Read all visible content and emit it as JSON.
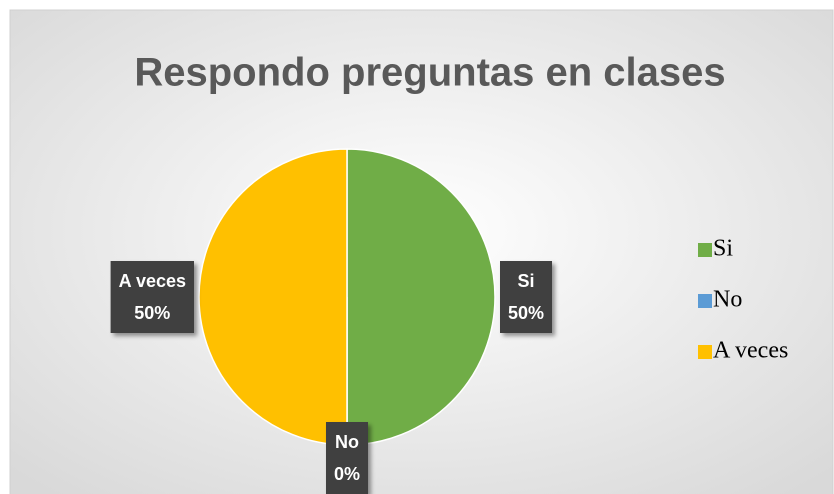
{
  "chart_data": {
    "type": "pie",
    "title": "Respondo preguntas en clases",
    "categories": [
      "Si",
      "No",
      "A veces"
    ],
    "values": [
      50,
      0,
      50
    ],
    "value_labels": [
      "50%",
      "0%",
      "50%"
    ],
    "colors": [
      "#70ad47",
      "#5b9bd5",
      "#ffc000"
    ],
    "legend": "right"
  }
}
